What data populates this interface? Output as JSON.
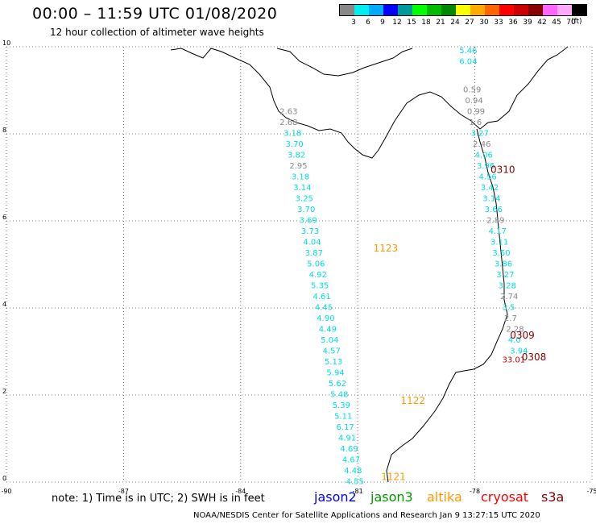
{
  "header": {
    "title": "00:00 – 11:59 UTC 01/08/2020",
    "subtitle": "12 hour collection of altimeter wave heights"
  },
  "colorbar": {
    "labels": [
      "3",
      "6",
      "9",
      "12",
      "15",
      "18",
      "21",
      "24",
      "27",
      "30",
      "33",
      "36",
      "39",
      "42",
      "45",
      "70"
    ],
    "unit": "(ft)",
    "colors": [
      "#888888",
      "#00eeee",
      "#00aaff",
      "#0000ff",
      "#009999",
      "#00ff00",
      "#00bb00",
      "#008800",
      "#ffff00",
      "#ffaa00",
      "#ff6600",
      "#ff0000",
      "#cc0000",
      "#880000",
      "#ff66ff",
      "#ffaaff",
      "#000000"
    ]
  },
  "map": {
    "lon_ticks": [
      "-90",
      "-87",
      "-84",
      "-81",
      "-78",
      "-75"
    ],
    "lat_ticks": [
      "0",
      "2",
      "4",
      "6",
      "8",
      "10"
    ],
    "extent": {
      "lon": [
        -90,
        -75
      ],
      "lat": [
        0,
        10
      ]
    },
    "grid": "dotted",
    "pass_labels": [
      {
        "text": "1123",
        "color": "#ff9900",
        "lon": -80.6,
        "lat": 5.3
      },
      {
        "text": "1122",
        "color": "#ff9900",
        "lon": -79.9,
        "lat": 1.8
      },
      {
        "text": "1121",
        "color": "#ff9900",
        "lon": -80.4,
        "lat": 0.05
      },
      {
        "text": "0310",
        "color": "#880000",
        "lon": -77.6,
        "lat": 7.1
      },
      {
        "text": "0309",
        "color": "#880000",
        "lon": -77.1,
        "lat": 3.3
      },
      {
        "text": "0308",
        "color": "#880000",
        "lon": -76.8,
        "lat": 2.8
      }
    ],
    "tracks": [
      {
        "name": "jason3 west",
        "points": [
          {
            "lon": -83.0,
            "lat": 8.45,
            "v": "2.63",
            "c": "#888888"
          },
          {
            "lon": -83.0,
            "lat": 8.2,
            "v": "2.68",
            "c": "#888888"
          },
          {
            "lon": -82.9,
            "lat": 7.95,
            "v": "3.18",
            "c": "#00dddd"
          },
          {
            "lon": -82.85,
            "lat": 7.7,
            "v": "3.70",
            "c": "#00dddd"
          },
          {
            "lon": -82.8,
            "lat": 7.45,
            "v": "3.82",
            "c": "#00dddd"
          },
          {
            "lon": -82.75,
            "lat": 7.2,
            "v": "2.95",
            "c": "#888888"
          },
          {
            "lon": -82.7,
            "lat": 6.95,
            "v": "3.18",
            "c": "#00dddd"
          },
          {
            "lon": -82.65,
            "lat": 6.7,
            "v": "3.14",
            "c": "#00dddd"
          },
          {
            "lon": -82.6,
            "lat": 6.45,
            "v": "3.25",
            "c": "#00dddd"
          },
          {
            "lon": -82.55,
            "lat": 6.2,
            "v": "3.70",
            "c": "#00dddd"
          },
          {
            "lon": -82.5,
            "lat": 5.95,
            "v": "3.69",
            "c": "#00dddd"
          },
          {
            "lon": -82.45,
            "lat": 5.7,
            "v": "3.73",
            "c": "#00dddd"
          },
          {
            "lon": -82.4,
            "lat": 5.45,
            "v": "4.04",
            "c": "#00dddd"
          },
          {
            "lon": -82.35,
            "lat": 5.2,
            "v": "3.87",
            "c": "#00dddd"
          },
          {
            "lon": -82.3,
            "lat": 4.95,
            "v": "5.06",
            "c": "#00dddd"
          },
          {
            "lon": -82.25,
            "lat": 4.7,
            "v": "4.92",
            "c": "#00dddd"
          },
          {
            "lon": -82.2,
            "lat": 4.45,
            "v": "5.35",
            "c": "#00dddd"
          },
          {
            "lon": -82.15,
            "lat": 4.2,
            "v": "4.61",
            "c": "#00dddd"
          },
          {
            "lon": -82.1,
            "lat": 3.95,
            "v": "4.45",
            "c": "#00dddd"
          },
          {
            "lon": -82.05,
            "lat": 3.7,
            "v": "4.90",
            "c": "#00dddd"
          },
          {
            "lon": -82.0,
            "lat": 3.45,
            "v": "4.49",
            "c": "#00dddd"
          },
          {
            "lon": -81.95,
            "lat": 3.2,
            "v": "5.04",
            "c": "#00dddd"
          },
          {
            "lon": -81.9,
            "lat": 2.95,
            "v": "4.57",
            "c": "#00dddd"
          },
          {
            "lon": -81.85,
            "lat": 2.7,
            "v": "5.13",
            "c": "#00dddd"
          },
          {
            "lon": -81.8,
            "lat": 2.45,
            "v": "5.94",
            "c": "#00dddd"
          },
          {
            "lon": -81.75,
            "lat": 2.2,
            "v": "5.62",
            "c": "#00dddd"
          },
          {
            "lon": -81.7,
            "lat": 1.95,
            "v": "5.48",
            "c": "#00dddd"
          },
          {
            "lon": -81.65,
            "lat": 1.7,
            "v": "5.39",
            "c": "#00dddd"
          },
          {
            "lon": -81.6,
            "lat": 1.45,
            "v": "5.11",
            "c": "#00dddd"
          },
          {
            "lon": -81.55,
            "lat": 1.2,
            "v": "6.17",
            "c": "#00dddd"
          },
          {
            "lon": -81.5,
            "lat": 0.95,
            "v": "4.91",
            "c": "#00dddd"
          },
          {
            "lon": -81.45,
            "lat": 0.7,
            "v": "4.69",
            "c": "#00dddd"
          },
          {
            "lon": -81.4,
            "lat": 0.45,
            "v": "4.67",
            "c": "#00dddd"
          },
          {
            "lon": -81.35,
            "lat": 0.2,
            "v": "4.48",
            "c": "#00dddd"
          },
          {
            "lon": -81.3,
            "lat": -0.05,
            "v": "4.55",
            "c": "#00dddd"
          }
        ]
      },
      {
        "name": "jason3 east",
        "points": [
          {
            "lon": -78.4,
            "lat": 9.85,
            "v": "5.46",
            "c": "#00dddd"
          },
          {
            "lon": -78.4,
            "lat": 9.6,
            "v": "6.04",
            "c": "#00dddd"
          },
          {
            "lon": -78.3,
            "lat": 8.95,
            "v": "0.59",
            "c": "#888888"
          },
          {
            "lon": -78.25,
            "lat": 8.7,
            "v": "0.94",
            "c": "#888888"
          },
          {
            "lon": -78.2,
            "lat": 8.45,
            "v": "0.99",
            "c": "#888888"
          },
          {
            "lon": -78.15,
            "lat": 8.2,
            "v": "1.6",
            "c": "#888888"
          },
          {
            "lon": -78.1,
            "lat": 7.95,
            "v": "3.27",
            "c": "#00dddd"
          },
          {
            "lon": -78.05,
            "lat": 7.7,
            "v": "2.46",
            "c": "#888888"
          },
          {
            "lon": -78.0,
            "lat": 7.45,
            "v": "4.06",
            "c": "#00dddd"
          },
          {
            "lon": -77.95,
            "lat": 7.2,
            "v": "3.96",
            "c": "#00dddd"
          },
          {
            "lon": -77.9,
            "lat": 6.95,
            "v": "4.56",
            "c": "#00dddd"
          },
          {
            "lon": -77.85,
            "lat": 6.7,
            "v": "3.42",
            "c": "#00dddd"
          },
          {
            "lon": -77.8,
            "lat": 6.45,
            "v": "3.14",
            "c": "#00dddd"
          },
          {
            "lon": -77.75,
            "lat": 6.2,
            "v": "3.66",
            "c": "#00dddd"
          },
          {
            "lon": -77.7,
            "lat": 5.95,
            "v": "2.89",
            "c": "#888888"
          },
          {
            "lon": -77.65,
            "lat": 5.7,
            "v": "4.17",
            "c": "#00dddd"
          },
          {
            "lon": -77.6,
            "lat": 5.45,
            "v": "3.11",
            "c": "#00dddd"
          },
          {
            "lon": -77.55,
            "lat": 5.2,
            "v": "3.50",
            "c": "#00dddd"
          },
          {
            "lon": -77.5,
            "lat": 4.95,
            "v": "3.86",
            "c": "#00dddd"
          },
          {
            "lon": -77.45,
            "lat": 4.7,
            "v": "3.27",
            "c": "#00dddd"
          },
          {
            "lon": -77.4,
            "lat": 4.45,
            "v": "3.28",
            "c": "#00dddd"
          },
          {
            "lon": -77.35,
            "lat": 4.2,
            "v": "2.74",
            "c": "#888888"
          },
          {
            "lon": -77.3,
            "lat": 3.95,
            "v": "3.5",
            "c": "#00dddd"
          },
          {
            "lon": -77.25,
            "lat": 3.7,
            "v": "2.7",
            "c": "#888888"
          },
          {
            "lon": -77.2,
            "lat": 3.45,
            "v": "2.28",
            "c": "#888888"
          },
          {
            "lon": -77.15,
            "lat": 3.2,
            "v": "4.0",
            "c": "#00dddd"
          },
          {
            "lon": -77.1,
            "lat": 2.95,
            "v": "3.94",
            "c": "#00dddd"
          }
        ]
      },
      {
        "name": "cryosat",
        "points": [
          {
            "lon": -77.3,
            "lat": 2.75,
            "v": "33.01",
            "c": "#cc0000"
          }
        ]
      }
    ]
  },
  "footer": {
    "note": "note: 1) Time is in UTC; 2) SWH is in feet",
    "credit": "NOAA/NESDIS Center for Satellite Applications and Research    Jan  9 13:27:15 UTC 2020",
    "legend": [
      {
        "label": "jason2",
        "color": "#0000ff"
      },
      {
        "label": "jason3",
        "color": "#009900"
      },
      {
        "label": "altika",
        "color": "#ff9900"
      },
      {
        "label": "cryosat",
        "color": "#ff0000"
      },
      {
        "label": "s3a",
        "color": "#880000"
      }
    ]
  }
}
